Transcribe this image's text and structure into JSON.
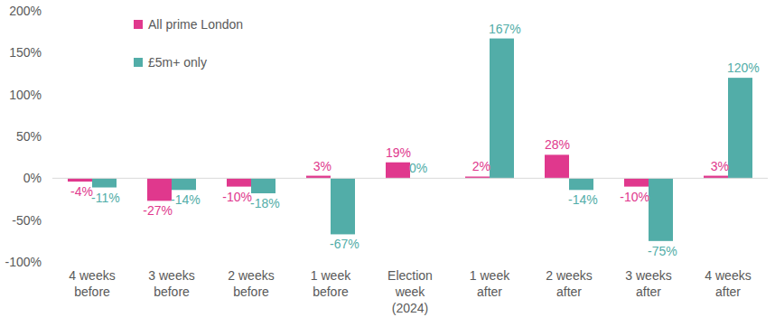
{
  "chart_data": {
    "type": "bar",
    "categories": [
      "4 weeks before",
      "3 weeks before",
      "2 weeks before",
      "1 week before",
      "Election week (2024)",
      "1 week after",
      "2 weeks after",
      "3 weeks after",
      "4 weeks after"
    ],
    "series": [
      {
        "name": "All prime London",
        "color": "#e0388d",
        "values": [
          -4,
          -27,
          -10,
          3,
          19,
          2,
          28,
          -10,
          3
        ],
        "value_labels": [
          "-4%",
          "-27%",
          "-10%",
          "3%",
          "19%",
          "2%",
          "28%",
          "-10%",
          "3%"
        ]
      },
      {
        "name": "£5m+ only",
        "color": "#52ada8",
        "values": [
          -11,
          -14,
          -18,
          -67,
          0,
          167,
          -14,
          -75,
          120
        ],
        "value_labels": [
          "-11%",
          "-14%",
          "-18%",
          "-67%",
          "0%",
          "167%",
          "-14%",
          "-75%",
          "120%"
        ]
      }
    ],
    "ylim": [
      -100,
      200
    ],
    "yticks": [
      {
        "value": -100,
        "label": "-100%"
      },
      {
        "value": -50,
        "label": "-50%"
      },
      {
        "value": 0,
        "label": "0%"
      },
      {
        "value": 50,
        "label": "50%"
      },
      {
        "value": 100,
        "label": "100%"
      },
      {
        "value": 150,
        "label": "150%"
      },
      {
        "value": 200,
        "label": "200%"
      }
    ],
    "grid": false,
    "legend": "upper left",
    "data_labels": true
  }
}
